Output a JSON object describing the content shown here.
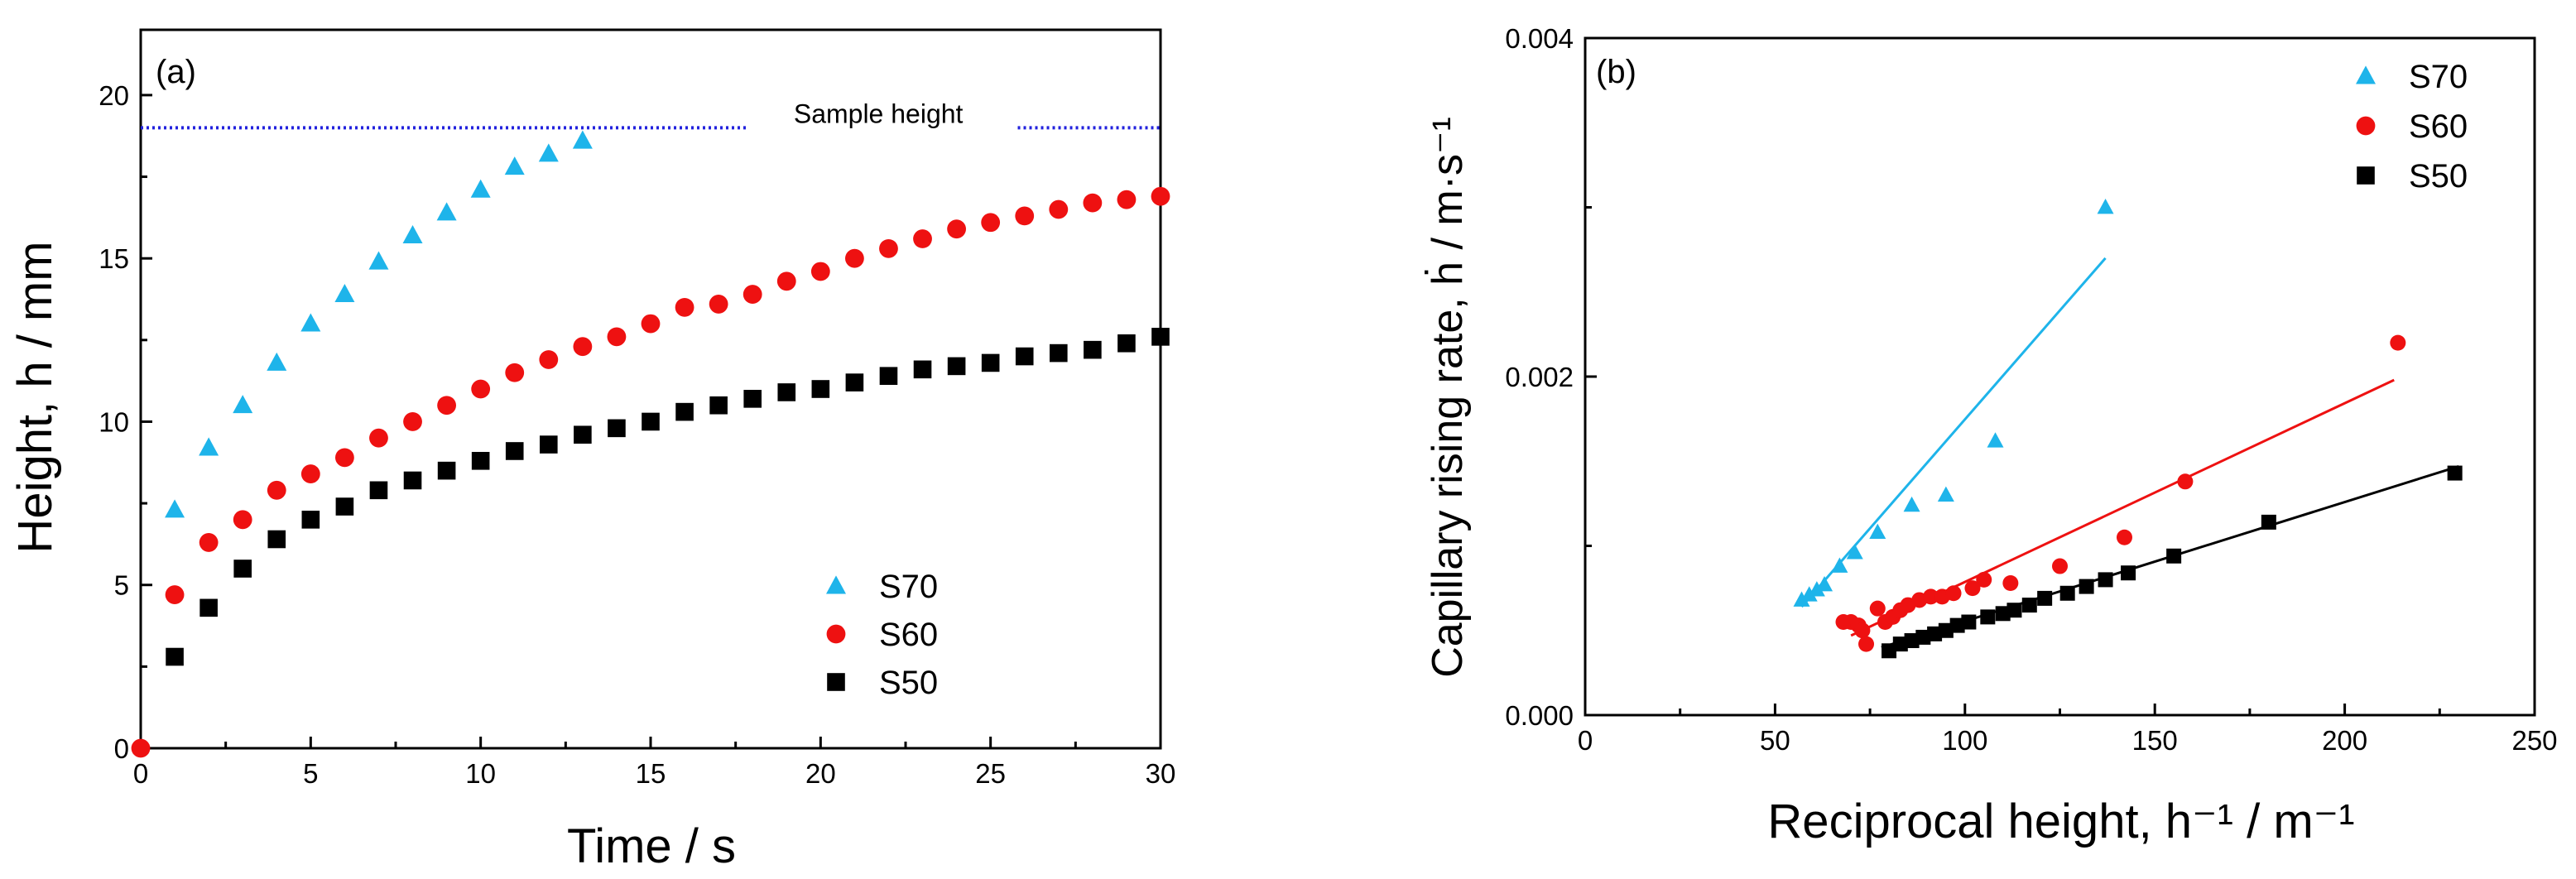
{
  "colors": {
    "S70": "#1eb4ea",
    "S60": "#ee1111",
    "S50": "#000000",
    "reference_line": "#2222dd"
  },
  "chart_data": [
    {
      "type": "scatter",
      "panel_label": "(a)",
      "xlabel": "Time / s",
      "ylabel": "Height, h / mm",
      "xlim": [
        0,
        30
      ],
      "ylim": [
        0,
        22
      ],
      "xticks": [
        0,
        5,
        10,
        15,
        20,
        25,
        30
      ],
      "yticks": [
        0,
        5,
        10,
        15,
        20
      ],
      "grid": false,
      "legend_position": "bottom-right",
      "annotation": {
        "label": "Sample height",
        "y": 19
      },
      "series": [
        {
          "name": "S70",
          "marker": "triangle",
          "x": [
            1,
            2,
            3,
            4,
            5,
            6,
            7,
            8,
            9,
            10,
            11,
            12,
            13
          ],
          "y": [
            7.3,
            9.2,
            10.5,
            11.8,
            13.0,
            13.9,
            14.9,
            15.7,
            16.4,
            17.1,
            17.8,
            18.2,
            18.6
          ]
        },
        {
          "name": "S60",
          "marker": "circle",
          "x": [
            0,
            1,
            2,
            3,
            4,
            5,
            6,
            7,
            8,
            9,
            10,
            11,
            12,
            13,
            14,
            15,
            16,
            17,
            18,
            19,
            20,
            21,
            22,
            23,
            24,
            25,
            26,
            27,
            28,
            29,
            30
          ],
          "y": [
            0,
            4.7,
            6.3,
            7.0,
            7.9,
            8.4,
            8.9,
            9.5,
            10.0,
            10.5,
            11.0,
            11.5,
            11.9,
            12.3,
            12.6,
            13.0,
            13.5,
            13.6,
            13.9,
            14.3,
            14.6,
            15.0,
            15.3,
            15.6,
            15.9,
            16.1,
            16.3,
            16.5,
            16.7,
            16.8,
            16.9
          ]
        },
        {
          "name": "S50",
          "marker": "square",
          "x": [
            1,
            2,
            3,
            4,
            5,
            6,
            7,
            8,
            9,
            10,
            11,
            12,
            13,
            14,
            15,
            16,
            17,
            18,
            19,
            20,
            21,
            22,
            23,
            24,
            25,
            26,
            27,
            28,
            29,
            30
          ],
          "y": [
            2.8,
            4.3,
            5.5,
            6.4,
            7.0,
            7.4,
            7.9,
            8.2,
            8.5,
            8.8,
            9.1,
            9.3,
            9.6,
            9.8,
            10.0,
            10.3,
            10.5,
            10.7,
            10.9,
            11.0,
            11.2,
            11.4,
            11.6,
            11.7,
            11.8,
            12.0,
            12.1,
            12.2,
            12.4,
            12.6
          ]
        }
      ]
    },
    {
      "type": "scatter",
      "panel_label": "(b)",
      "xlabel": "Reciprocal height, h⁻¹ / m⁻¹",
      "ylabel": "Capillary rising rate, ḣ / m·s⁻¹",
      "xlim": [
        0,
        250
      ],
      "ylim": [
        0,
        0.004
      ],
      "xticks": [
        0,
        50,
        100,
        150,
        200,
        250
      ],
      "yticks": [
        0.0,
        0.002,
        0.004
      ],
      "ytick_labels": [
        "0.000",
        "0.002",
        "0.004"
      ],
      "grid": false,
      "legend_position": "top-right",
      "series": [
        {
          "name": "S70",
          "marker": "triangle",
          "x": [
            57,
            59,
            61,
            63,
            67,
            71,
            77,
            86,
            95,
            108,
            137
          ],
          "y": [
            0.00068,
            0.00071,
            0.00074,
            0.00077,
            0.00088,
            0.00096,
            0.00108,
            0.00124,
            0.0013,
            0.00162,
            0.003
          ],
          "fit": {
            "x": [
              57,
              137
            ],
            "y": [
              0.00064,
              0.0027
            ]
          }
        },
        {
          "name": "S60",
          "marker": "circle",
          "x": [
            68,
            70,
            72,
            73,
            74,
            77,
            79,
            81,
            83,
            85,
            88,
            91,
            94,
            97,
            102,
            105,
            112,
            125,
            142,
            158,
            214
          ],
          "y": [
            0.00055,
            0.00055,
            0.00053,
            0.0005,
            0.00042,
            0.00063,
            0.00055,
            0.00058,
            0.00062,
            0.00065,
            0.00068,
            0.0007,
            0.0007,
            0.00072,
            0.00075,
            0.0008,
            0.00078,
            0.00088,
            0.00105,
            0.00138,
            0.0022
          ],
          "fit": {
            "x": [
              70,
              213
            ],
            "y": [
              0.00047,
              0.00198
            ]
          }
        },
        {
          "name": "S50",
          "marker": "square",
          "x": [
            80,
            83,
            86,
            89,
            92,
            95,
            98,
            101,
            106,
            110,
            113,
            117,
            121,
            127,
            132,
            137,
            143,
            155,
            180,
            229
          ],
          "y": [
            0.00038,
            0.00042,
            0.00044,
            0.00046,
            0.00048,
            0.0005,
            0.00053,
            0.00055,
            0.00058,
            0.0006,
            0.00062,
            0.00065,
            0.00069,
            0.00072,
            0.00076,
            0.0008,
            0.00084,
            0.00094,
            0.00114,
            0.00143
          ],
          "fit": {
            "x": [
              78,
              230
            ],
            "y": [
              0.0004,
              0.00147
            ]
          }
        }
      ]
    }
  ]
}
